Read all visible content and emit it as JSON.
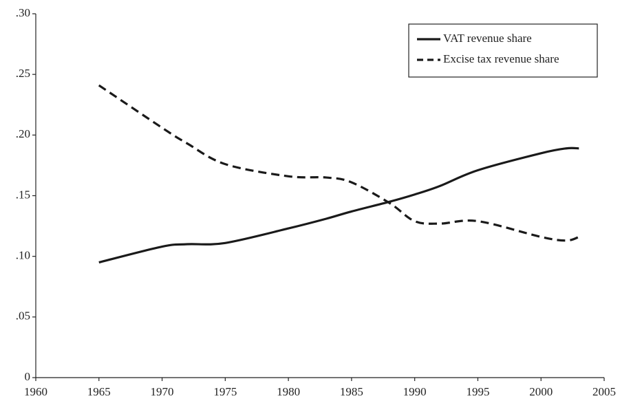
{
  "chart_data": {
    "type": "line",
    "x": [
      1965,
      1970,
      1972,
      1975,
      1980,
      1983,
      1985,
      1988,
      1990,
      1992,
      1995,
      2000,
      2002,
      2003
    ],
    "series": [
      {
        "name": "VAT revenue share",
        "color": "#1a1a1a",
        "line_style": "solid",
        "values": [
          0.095,
          0.108,
          0.11,
          0.111,
          0.123,
          0.131,
          0.137,
          0.145,
          0.151,
          0.158,
          0.171,
          0.185,
          0.189,
          0.189
        ]
      },
      {
        "name": "Excise tax revenue share",
        "color": "#1a1a1a",
        "line_style": "dashed",
        "values": [
          0.241,
          0.206,
          0.193,
          0.176,
          0.166,
          0.165,
          0.161,
          0.144,
          0.129,
          0.127,
          0.129,
          0.116,
          0.113,
          0.116
        ]
      }
    ],
    "xlim": [
      1960,
      2005
    ],
    "xticks": [
      1960,
      1965,
      1970,
      1975,
      1980,
      1985,
      1990,
      1995,
      2000,
      2005
    ],
    "ylim": [
      0,
      0.3
    ],
    "yticks": [
      0,
      {
        "value": 0.05,
        "label": ".05"
      },
      {
        "value": 0.1,
        "label": ".10"
      },
      {
        "value": 0.15,
        "label": ".15"
      },
      {
        "value": 0.2,
        "label": ".20"
      },
      {
        "value": 0.25,
        "label": ".25"
      },
      {
        "value": 0.3,
        "label": ".30"
      }
    ],
    "grid": false,
    "legend": "upper right"
  }
}
